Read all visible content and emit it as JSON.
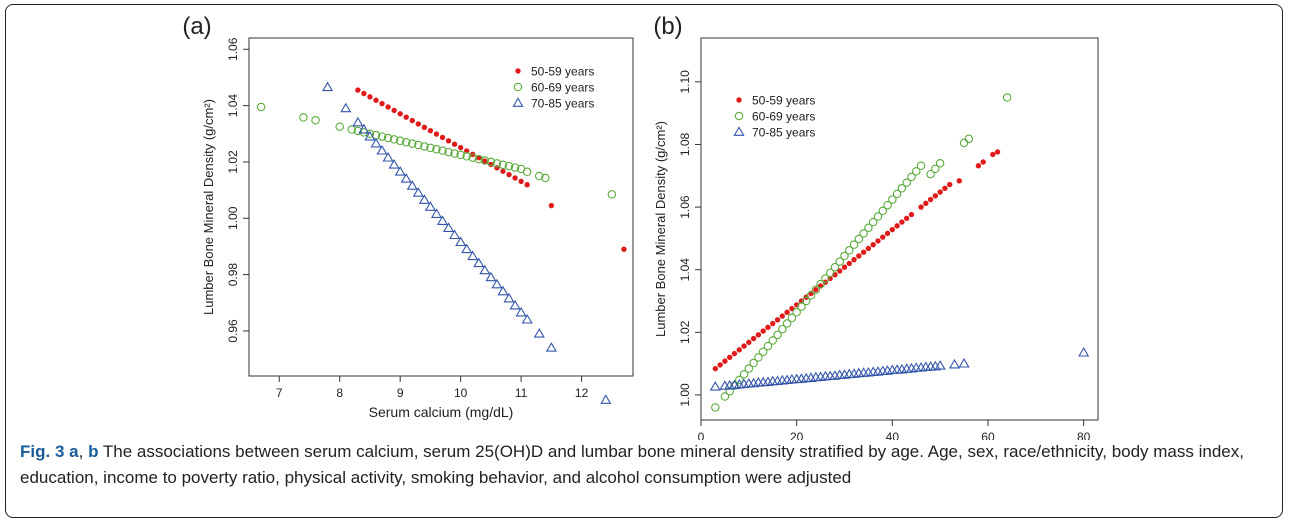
{
  "caption": {
    "fig_label": "Fig. 3",
    "panel_a": "a",
    "sep": ", ",
    "panel_b": "b",
    "text": " The associations between serum calcium, serum 25(OH)D and lumbar bone mineral density stratified by age. Age, sex, race/ethnicity, body mass index, education, income to poverty ratio, physical activity, smoking behavior, and alcohol consumption were adjusted"
  },
  "colors": {
    "series_50_59": "#e01b1b",
    "series_60_69": "#5aab3c",
    "series_70_85": "#3355aa"
  },
  "chart_data": [
    {
      "type": "scatter",
      "panel_label": "(a)",
      "xlabel": "Serum calcium (mg/dL)",
      "ylabel": "Lumber Bone Mineral Density (g/cm²)",
      "xlim": [
        6.5,
        12.85
      ],
      "ylim": [
        0.944,
        1.064
      ],
      "xticks": [
        "7",
        "8",
        "9",
        "10",
        "11",
        "12"
      ],
      "yticks": [
        "0.96",
        "0.98",
        "1.00",
        "1.02",
        "1.04",
        "1.06"
      ],
      "legend_position": "top-right",
      "series": [
        {
          "name": "50-59 years",
          "marker": "filled-circle",
          "x": [
            8.3,
            8.4,
            8.5,
            8.6,
            8.7,
            8.8,
            8.9,
            9.0,
            9.1,
            9.2,
            9.3,
            9.4,
            9.5,
            9.6,
            9.7,
            9.8,
            9.9,
            10.0,
            10.1,
            10.2,
            10.3,
            10.4,
            10.5,
            10.6,
            10.7,
            10.8,
            10.9,
            11.0,
            11.1,
            11.5,
            12.7
          ],
          "y": [
            1.0455,
            1.0443,
            1.0431,
            1.0419,
            1.0407,
            1.0395,
            1.0383,
            1.0371,
            1.0359,
            1.0347,
            1.0335,
            1.0323,
            1.0311,
            1.0299,
            1.0287,
            1.0275,
            1.0263,
            1.0251,
            1.0239,
            1.0227,
            1.0215,
            1.0203,
            1.0191,
            1.0179,
            1.0167,
            1.0155,
            1.0143,
            1.0131,
            1.0119,
            1.0045,
            0.989
          ]
        },
        {
          "name": "60-69 years",
          "marker": "open-circle",
          "x": [
            6.7,
            7.4,
            7.6,
            8.0,
            8.2,
            8.3,
            8.4,
            8.5,
            8.6,
            8.7,
            8.8,
            8.9,
            9.0,
            9.1,
            9.2,
            9.3,
            9.4,
            9.5,
            9.6,
            9.7,
            9.8,
            9.9,
            10.0,
            10.1,
            10.2,
            10.3,
            10.4,
            10.5,
            10.6,
            10.7,
            10.8,
            10.9,
            11.0,
            11.1,
            11.3,
            11.4,
            12.5
          ],
          "y": [
            1.0395,
            1.0358,
            1.0348,
            1.0325,
            1.0315,
            1.031,
            1.0305,
            1.03,
            1.0295,
            1.029,
            1.0285,
            1.028,
            1.0275,
            1.027,
            1.0265,
            1.026,
            1.0255,
            1.025,
            1.0245,
            1.024,
            1.0235,
            1.023,
            1.0225,
            1.022,
            1.0215,
            1.021,
            1.0205,
            1.02,
            1.0195,
            1.019,
            1.0185,
            1.018,
            1.0175,
            1.0165,
            1.015,
            1.0143,
            1.0085
          ]
        },
        {
          "name": "70-85 years",
          "marker": "open-triangle",
          "x": [
            7.8,
            8.1,
            8.3,
            8.4,
            8.5,
            8.6,
            8.7,
            8.8,
            8.9,
            9.0,
            9.1,
            9.2,
            9.3,
            9.4,
            9.5,
            9.6,
            9.7,
            9.8,
            9.9,
            10.0,
            10.1,
            10.2,
            10.3,
            10.4,
            10.5,
            10.6,
            10.7,
            10.8,
            10.9,
            11.0,
            11.1,
            11.3,
            11.5,
            12.4
          ],
          "y": [
            1.0465,
            1.039,
            1.034,
            1.0315,
            1.029,
            1.0265,
            1.024,
            1.0215,
            1.019,
            1.0165,
            1.014,
            1.0115,
            1.009,
            1.0065,
            1.004,
            1.0015,
            0.999,
            0.9965,
            0.994,
            0.9915,
            0.989,
            0.9865,
            0.984,
            0.9815,
            0.979,
            0.9765,
            0.974,
            0.9715,
            0.969,
            0.9665,
            0.964,
            0.959,
            0.954,
            0.9355
          ]
        }
      ]
    },
    {
      "type": "scatter",
      "panel_label": "(b)",
      "xlabel": "Serum 25(OH)D (ng/mL)",
      "ylabel": "Lumber Bone Mineral Density (g/cm²)",
      "xlim": [
        0,
        83
      ],
      "ylim": [
        0.992,
        1.114
      ],
      "xticks": [
        "0",
        "20",
        "40",
        "60",
        "80"
      ],
      "yticks": [
        "1.00",
        "1.02",
        "1.04",
        "1.06",
        "1.08",
        "1.10"
      ],
      "legend_position": "top-left",
      "series": [
        {
          "name": "50-59 years",
          "marker": "filled-circle",
          "x": [
            3,
            4,
            5,
            6,
            7,
            8,
            9,
            10,
            11,
            12,
            13,
            14,
            15,
            16,
            17,
            18,
            19,
            20,
            21,
            22,
            23,
            24,
            25,
            26,
            27,
            28,
            29,
            30,
            31,
            32,
            33,
            34,
            35,
            36,
            37,
            38,
            39,
            40,
            41,
            42,
            43,
            44,
            46,
            47,
            48,
            49,
            50,
            51,
            52,
            54,
            58,
            59,
            61,
            62
          ],
          "y": [
            1.0084,
            1.0096,
            1.0108,
            1.012,
            1.0132,
            1.0144,
            1.0156,
            1.0168,
            1.018,
            1.0192,
            1.0204,
            1.0216,
            1.0228,
            1.024,
            1.0252,
            1.0264,
            1.0276,
            1.0288,
            1.03,
            1.0312,
            1.0324,
            1.0336,
            1.0348,
            1.036,
            1.0372,
            1.0384,
            1.0396,
            1.0408,
            1.042,
            1.0432,
            1.0444,
            1.0456,
            1.0468,
            1.048,
            1.0492,
            1.0504,
            1.0516,
            1.0528,
            1.054,
            1.0552,
            1.0564,
            1.0576,
            1.06,
            1.0612,
            1.0624,
            1.0636,
            1.0648,
            1.066,
            1.0672,
            1.0684,
            1.0732,
            1.0744,
            1.0768,
            1.0776
          ]
        },
        {
          "name": "60-69 years",
          "marker": "open-circle",
          "x": [
            3,
            5,
            6,
            7,
            8,
            9,
            10,
            11,
            12,
            13,
            14,
            15,
            16,
            17,
            18,
            19,
            20,
            21,
            22,
            23,
            24,
            25,
            26,
            27,
            28,
            29,
            30,
            31,
            32,
            33,
            34,
            35,
            36,
            37,
            38,
            39,
            40,
            41,
            42,
            43,
            44,
            45,
            46,
            48,
            49,
            50,
            55,
            56,
            64
          ],
          "y": [
            0.996,
            0.9995,
            1.0012,
            1.003,
            1.0048,
            1.0066,
            1.0084,
            1.0102,
            1.012,
            1.0138,
            1.0156,
            1.0174,
            1.0192,
            1.021,
            1.0228,
            1.0246,
            1.0264,
            1.0282,
            1.03,
            1.0318,
            1.0336,
            1.0354,
            1.0372,
            1.039,
            1.0408,
            1.0426,
            1.0444,
            1.0462,
            1.048,
            1.0498,
            1.0516,
            1.0534,
            1.0552,
            1.057,
            1.0588,
            1.0606,
            1.0624,
            1.0642,
            1.066,
            1.0678,
            1.0696,
            1.0714,
            1.0732,
            1.0705,
            1.0722,
            1.074,
            1.0805,
            1.0818,
            1.095
          ]
        },
        {
          "name": "70-85 years",
          "marker": "open-triangle",
          "x": [
            3,
            5,
            6,
            7,
            8,
            9,
            10,
            11,
            12,
            13,
            14,
            15,
            16,
            17,
            18,
            19,
            20,
            21,
            22,
            23,
            24,
            25,
            26,
            27,
            28,
            29,
            30,
            31,
            32,
            33,
            34,
            35,
            36,
            37,
            38,
            39,
            40,
            41,
            42,
            43,
            44,
            45,
            46,
            47,
            48,
            49,
            50,
            53,
            55,
            80
          ],
          "y": [
            1.0026,
            1.0029,
            1.003,
            1.0031,
            1.0033,
            1.0034,
            1.0036,
            1.0037,
            1.0039,
            1.004,
            1.0041,
            1.0043,
            1.0044,
            1.0046,
            1.0047,
            1.0049,
            1.005,
            1.0051,
            1.0053,
            1.0054,
            1.0056,
            1.0057,
            1.0059,
            1.006,
            1.0061,
            1.0063,
            1.0064,
            1.0066,
            1.0067,
            1.0069,
            1.007,
            1.0071,
            1.0073,
            1.0074,
            1.0076,
            1.0077,
            1.0079,
            1.008,
            1.0081,
            1.0083,
            1.0084,
            1.0086,
            1.0087,
            1.0089,
            1.009,
            1.0091,
            1.0093,
            1.0097,
            1.01,
            1.0135
          ]
        }
      ]
    }
  ]
}
